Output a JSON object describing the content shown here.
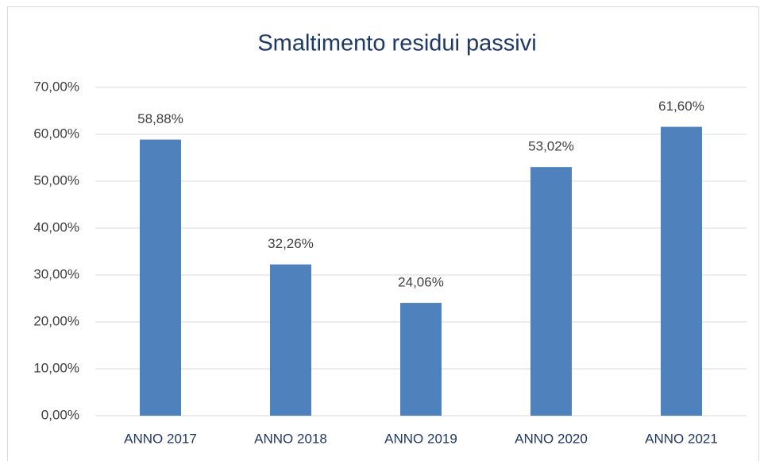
{
  "chart_data": {
    "type": "bar",
    "title": "Smaltimento residui passivi",
    "categories": [
      "ANNO 2017",
      "ANNO 2018",
      "ANNO 2019",
      "ANNO 2020",
      "ANNO 2021"
    ],
    "values": [
      58.88,
      32.26,
      24.06,
      53.02,
      61.6
    ],
    "value_labels": [
      "58,88%",
      "32,26%",
      "24,06%",
      "53,02%",
      "61,60%"
    ],
    "color": "#4f81bd",
    "ylim": [
      0,
      70
    ],
    "yticks": [
      {
        "value": 0,
        "label": "0,00%"
      },
      {
        "value": 10,
        "label": "10,00%"
      },
      {
        "value": 20,
        "label": "20,00%"
      },
      {
        "value": 30,
        "label": "30,00%"
      },
      {
        "value": 40,
        "label": "40,00%"
      },
      {
        "value": 50,
        "label": "50,00%"
      },
      {
        "value": 60,
        "label": "60,00%"
      },
      {
        "value": 70,
        "label": "70,00%"
      }
    ],
    "grid": true
  }
}
